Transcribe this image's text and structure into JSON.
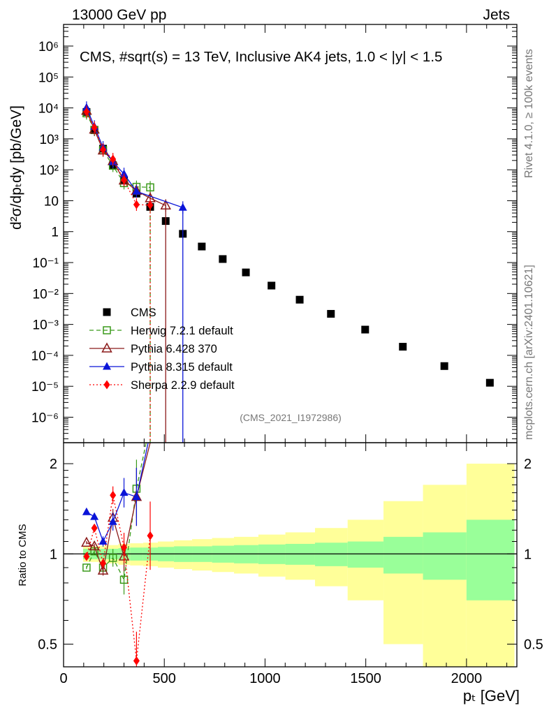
{
  "header": {
    "left": "13000 GeV pp",
    "right": "Jets"
  },
  "side_text": {
    "rivet": "Rivet 4.1.0, ≥ 100k events",
    "mcplots": "mcplots.cern.ch [arXiv:2401.10621]"
  },
  "colors": {
    "cms": "#000000",
    "herwig": "#3a9a1a",
    "pythia6": "#8b1a1a",
    "pythia8": "#0a14d8",
    "sherpa": "#ff0000",
    "band_inner": "#99ff99",
    "band_outer": "#ffff99"
  },
  "chart_data": [
    {
      "type": "scatter",
      "title": "CMS, #sqrt(s) = 13 TeV, Inclusive AK4 jets, 1.0 < |y| < 1.5",
      "ylabel": "d²σ/dpₜdy [pb/GeV]",
      "xlabel": "pₜ [GeV]",
      "yscale": "log",
      "xlim": [
        0,
        2250
      ],
      "ylim": [
        1.5e-07,
        5000000.0
      ],
      "analysis_tag": "(CMS_2021_I1972986)",
      "ytick_labels": [
        "10⁶",
        "10⁵",
        "10⁴",
        "10³",
        "10²",
        "10",
        "1",
        "10⁻¹",
        "10⁻²",
        "10⁻³",
        "10⁻⁴",
        "10⁻⁵",
        "10⁻⁶"
      ],
      "series": [
        {
          "name": "CMS",
          "x": [
            114,
            153,
            196,
            245,
            300,
            362,
            430,
            507,
            592,
            686,
            790,
            905,
            1032,
            1172,
            1327,
            1497,
            1684,
            1890,
            2116
          ],
          "y": [
            7400,
            1900,
            480,
            140,
            45,
            17,
            6.3,
            2.2,
            0.85,
            0.33,
            0.13,
            0.048,
            0.018,
            0.0063,
            0.0022,
            0.00068,
            0.00019,
            4.5e-05,
            1.3e-05
          ]
        },
        {
          "name": "Herwig 7.2.1 default",
          "x": [
            114,
            153,
            196,
            245,
            300,
            362,
            430
          ],
          "y": [
            6700,
            1950,
            430,
            135,
            37,
            28,
            27
          ]
        },
        {
          "name": "Pythia 6.428 370",
          "x": [
            114,
            153,
            196,
            245,
            300,
            362,
            430,
            507
          ],
          "y": [
            8100,
            2000,
            420,
            190,
            45,
            21,
            12,
            7
          ]
        },
        {
          "name": "Pythia 8.315 default",
          "x": [
            114,
            153,
            196,
            245,
            300,
            362,
            592
          ],
          "y": [
            10200,
            2500,
            530,
            180,
            73,
            20,
            6
          ]
        },
        {
          "name": "Sherpa 2.2.9 default",
          "x": [
            114,
            153,
            196,
            245,
            300,
            362,
            430
          ],
          "y": [
            7500,
            2300,
            450,
            220,
            47,
            7.5,
            7.2
          ]
        }
      ],
      "legend": [
        "CMS",
        "Herwig 7.2.1 default",
        "Pythia 6.428 370",
        "Pythia 8.315 default",
        "Sherpa 2.2.9 default"
      ]
    },
    {
      "type": "line",
      "ylabel": "Ratio to CMS",
      "xlabel": "pₜ [GeV]",
      "yscale": "log",
      "xlim": [
        0,
        2250
      ],
      "ylim": [
        0.42,
        2.35
      ],
      "xtick_labels": [
        "0",
        "500",
        "1000",
        "1500",
        "2000"
      ],
      "ytick_labels": [
        "2",
        "1",
        "0.5"
      ],
      "bins": [
        97,
        133,
        174,
        220,
        272,
        330,
        395,
        468,
        548,
        638,
        737,
        846,
        967,
        1101,
        1248,
        1410,
        1588,
        1784,
        2000,
        2238
      ],
      "band_inner": [
        0.04,
        0.04,
        0.04,
        0.04,
        0.045,
        0.05,
        0.05,
        0.055,
        0.06,
        0.06,
        0.065,
        0.07,
        0.075,
        0.08,
        0.09,
        0.1,
        0.14,
        0.18,
        0.3
      ],
      "band_outer": [
        0.06,
        0.06,
        0.065,
        0.07,
        0.08,
        0.085,
        0.09,
        0.1,
        0.11,
        0.12,
        0.13,
        0.14,
        0.16,
        0.18,
        0.22,
        0.3,
        0.5,
        0.7,
        1.0
      ],
      "series": [
        {
          "name": "Herwig 7.2.1 default",
          "x": [
            114,
            153,
            196,
            245,
            300,
            362
          ],
          "y": [
            0.9,
            1.02,
            0.9,
            0.97,
            0.82,
            1.65
          ]
        },
        {
          "name": "Pythia 6.428 370",
          "x": [
            114,
            153,
            196,
            245,
            300,
            362
          ],
          "y": [
            1.09,
            1.06,
            0.88,
            1.32,
            0.98,
            1.55
          ]
        },
        {
          "name": "Pythia 8.315 default",
          "x": [
            114,
            153,
            196,
            245,
            300,
            362
          ],
          "y": [
            1.38,
            1.33,
            1.1,
            1.28,
            1.6,
            1.55
          ]
        },
        {
          "name": "Sherpa 2.2.9 default",
          "x": [
            114,
            153,
            196,
            245,
            300,
            362,
            430
          ],
          "y": [
            0.98,
            1.22,
            0.93,
            1.57,
            1.05,
            0.44,
            1.15
          ]
        }
      ]
    }
  ]
}
